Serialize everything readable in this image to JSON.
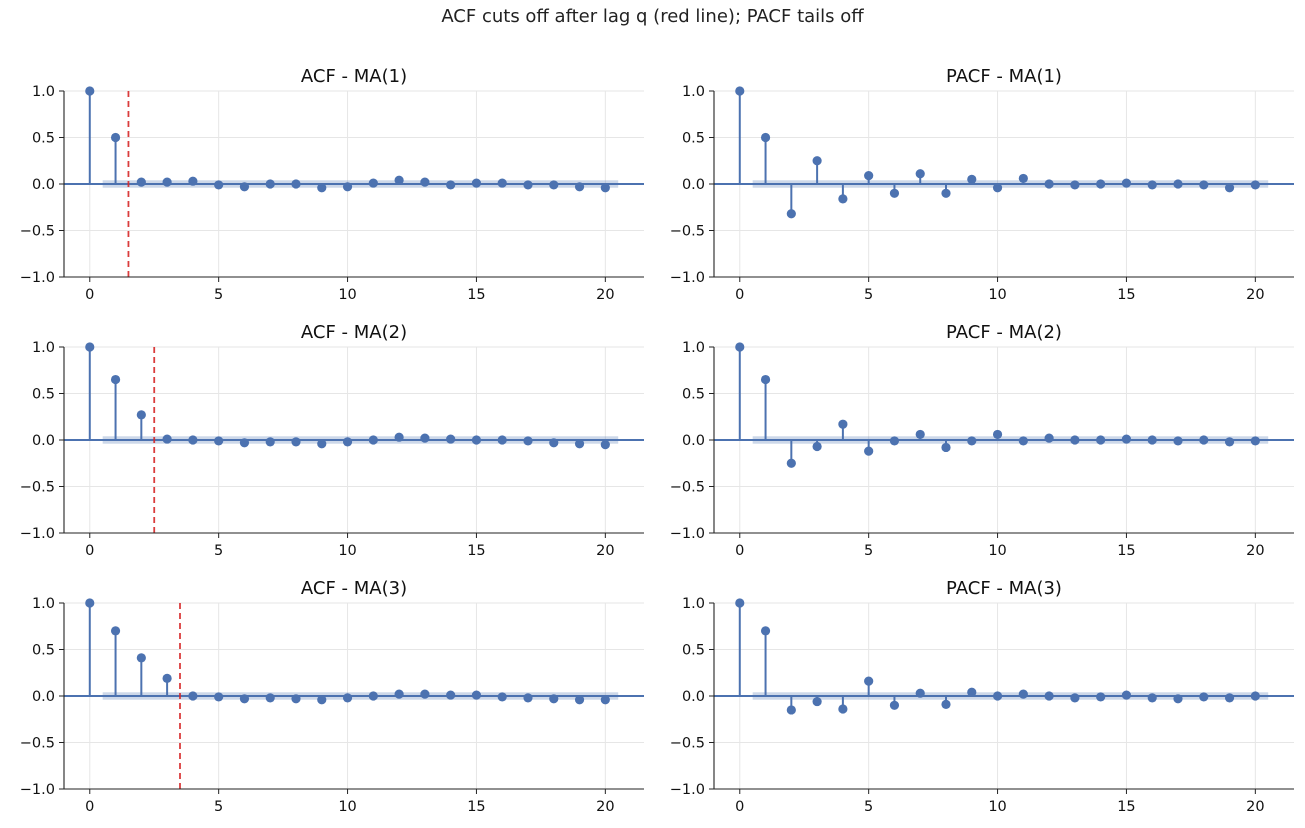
{
  "figure": {
    "suptitle": "ACF cuts off after lag q (red line); PACF tails off"
  },
  "colors": {
    "stem": "#4c72b0",
    "cutoff_line": "#d62728",
    "confidence_band": "#4c72b0",
    "grid": "#e6e6e6"
  },
  "chart_data": [
    {
      "type": "stem",
      "title": "ACF  - MA(1)",
      "x": [
        0,
        1,
        2,
        3,
        4,
        5,
        6,
        7,
        8,
        9,
        10,
        11,
        12,
        13,
        14,
        15,
        16,
        17,
        18,
        19,
        20
      ],
      "values": [
        1.0,
        0.5,
        0.02,
        0.02,
        0.03,
        -0.01,
        -0.03,
        0.0,
        0.0,
        -0.04,
        -0.03,
        0.01,
        0.04,
        0.02,
        -0.01,
        0.01,
        0.01,
        -0.01,
        -0.01,
        -0.03,
        -0.04
      ],
      "confidence": 0.04,
      "cutoff_lag": 1.5,
      "xlim": [
        -1,
        21.5
      ],
      "ylim": [
        -1.0,
        1.0
      ],
      "xticks": [
        0,
        5,
        10,
        15,
        20
      ],
      "yticks": [
        -1.0,
        -0.5,
        0.0,
        0.5,
        1.0
      ],
      "xtick_labels": [
        "0",
        "5",
        "10",
        "15",
        "20"
      ],
      "ytick_labels": [
        "−1.0",
        "−0.5",
        "0.0",
        "0.5",
        "1.0"
      ],
      "grid": true
    },
    {
      "type": "stem",
      "title": "PACF - MA(1)",
      "x": [
        0,
        1,
        2,
        3,
        4,
        5,
        6,
        7,
        8,
        9,
        10,
        11,
        12,
        13,
        14,
        15,
        16,
        17,
        18,
        19,
        20
      ],
      "values": [
        1.0,
        0.5,
        -0.32,
        0.25,
        -0.16,
        0.09,
        -0.1,
        0.11,
        -0.1,
        0.05,
        -0.04,
        0.06,
        0.0,
        -0.01,
        0.0,
        0.01,
        -0.01,
        0.0,
        -0.01,
        -0.04,
        -0.01
      ],
      "confidence": 0.04,
      "xlim": [
        -1,
        21.5
      ],
      "ylim": [
        -1.0,
        1.0
      ],
      "xticks": [
        0,
        5,
        10,
        15,
        20
      ],
      "yticks": [
        -1.0,
        -0.5,
        0.0,
        0.5,
        1.0
      ],
      "xtick_labels": [
        "0",
        "5",
        "10",
        "15",
        "20"
      ],
      "ytick_labels": [
        "−1.0",
        "−0.5",
        "0.0",
        "0.5",
        "1.0"
      ],
      "grid": true
    },
    {
      "type": "stem",
      "title": "ACF  - MA(2)",
      "x": [
        0,
        1,
        2,
        3,
        4,
        5,
        6,
        7,
        8,
        9,
        10,
        11,
        12,
        13,
        14,
        15,
        16,
        17,
        18,
        19,
        20
      ],
      "values": [
        1.0,
        0.65,
        0.27,
        0.01,
        0.0,
        -0.01,
        -0.03,
        -0.02,
        -0.02,
        -0.04,
        -0.02,
        0.0,
        0.03,
        0.02,
        0.01,
        0.0,
        0.0,
        -0.01,
        -0.03,
        -0.04,
        -0.05
      ],
      "confidence": 0.04,
      "cutoff_lag": 2.5,
      "xlim": [
        -1,
        21.5
      ],
      "ylim": [
        -1.0,
        1.0
      ],
      "xticks": [
        0,
        5,
        10,
        15,
        20
      ],
      "yticks": [
        -1.0,
        -0.5,
        0.0,
        0.5,
        1.0
      ],
      "xtick_labels": [
        "0",
        "5",
        "10",
        "15",
        "20"
      ],
      "ytick_labels": [
        "−1.0",
        "−0.5",
        "0.0",
        "0.5",
        "1.0"
      ],
      "grid": true
    },
    {
      "type": "stem",
      "title": "PACF - MA(2)",
      "x": [
        0,
        1,
        2,
        3,
        4,
        5,
        6,
        7,
        8,
        9,
        10,
        11,
        12,
        13,
        14,
        15,
        16,
        17,
        18,
        19,
        20
      ],
      "values": [
        1.0,
        0.65,
        -0.25,
        -0.07,
        0.17,
        -0.12,
        -0.01,
        0.06,
        -0.08,
        -0.01,
        0.06,
        -0.01,
        0.02,
        0.0,
        0.0,
        0.01,
        0.0,
        -0.01,
        0.0,
        -0.02,
        -0.01
      ],
      "confidence": 0.04,
      "xlim": [
        -1,
        21.5
      ],
      "ylim": [
        -1.0,
        1.0
      ],
      "xticks": [
        0,
        5,
        10,
        15,
        20
      ],
      "yticks": [
        -1.0,
        -0.5,
        0.0,
        0.5,
        1.0
      ],
      "xtick_labels": [
        "0",
        "5",
        "10",
        "15",
        "20"
      ],
      "ytick_labels": [
        "−1.0",
        "−0.5",
        "0.0",
        "0.5",
        "1.0"
      ],
      "grid": true
    },
    {
      "type": "stem",
      "title": "ACF  - MA(3)",
      "x": [
        0,
        1,
        2,
        3,
        4,
        5,
        6,
        7,
        8,
        9,
        10,
        11,
        12,
        13,
        14,
        15,
        16,
        17,
        18,
        19,
        20
      ],
      "values": [
        1.0,
        0.7,
        0.41,
        0.19,
        0.0,
        -0.01,
        -0.03,
        -0.02,
        -0.03,
        -0.04,
        -0.02,
        0.0,
        0.02,
        0.02,
        0.01,
        0.01,
        -0.01,
        -0.02,
        -0.03,
        -0.04,
        -0.04
      ],
      "confidence": 0.04,
      "cutoff_lag": 3.5,
      "xlim": [
        -1,
        21.5
      ],
      "ylim": [
        -1.0,
        1.0
      ],
      "xticks": [
        0,
        5,
        10,
        15,
        20
      ],
      "yticks": [
        -1.0,
        -0.5,
        0.0,
        0.5,
        1.0
      ],
      "xtick_labels": [
        "0",
        "5",
        "10",
        "15",
        "20"
      ],
      "ytick_labels": [
        "−1.0",
        "−0.5",
        "0.0",
        "0.5",
        "1.0"
      ],
      "grid": true
    },
    {
      "type": "stem",
      "title": "PACF - MA(3)",
      "x": [
        0,
        1,
        2,
        3,
        4,
        5,
        6,
        7,
        8,
        9,
        10,
        11,
        12,
        13,
        14,
        15,
        16,
        17,
        18,
        19,
        20
      ],
      "values": [
        1.0,
        0.7,
        -0.15,
        -0.06,
        -0.14,
        0.16,
        -0.1,
        0.03,
        -0.09,
        0.04,
        0.0,
        0.02,
        0.0,
        -0.02,
        -0.01,
        0.01,
        -0.02,
        -0.03,
        -0.01,
        -0.02,
        0.0
      ],
      "confidence": 0.04,
      "xlim": [
        -1,
        21.5
      ],
      "ylim": [
        -1.0,
        1.0
      ],
      "xticks": [
        0,
        5,
        10,
        15,
        20
      ],
      "yticks": [
        -1.0,
        -0.5,
        0.0,
        0.5,
        1.0
      ],
      "xtick_labels": [
        "0",
        "5",
        "10",
        "15",
        "20"
      ],
      "ytick_labels": [
        "−1.0",
        "−0.5",
        "0.0",
        "0.5",
        "1.0"
      ],
      "grid": true
    }
  ]
}
